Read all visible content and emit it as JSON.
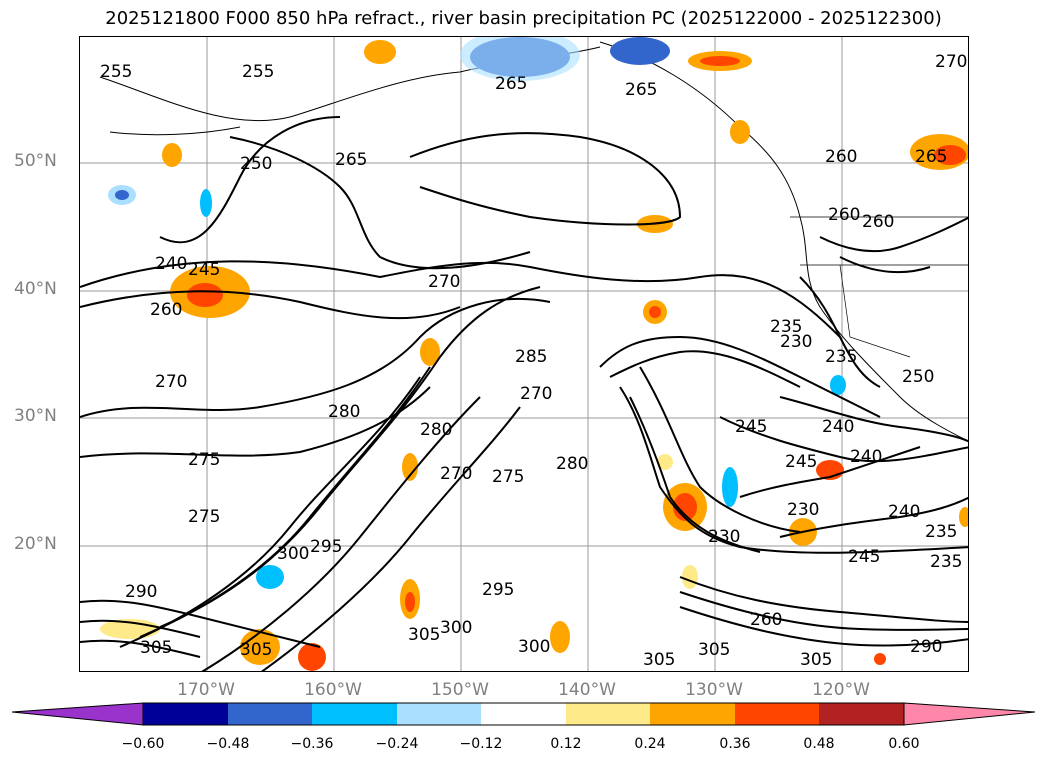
{
  "title": "2025121800 F000 850 hPa refract., river basin precipitation PC (2025122000 - 2025122300)",
  "latitude_labels": [
    "50°N",
    "40°N",
    "30°N",
    "20°N"
  ],
  "longitude_labels": [
    "170°W",
    "160°W",
    "150°W",
    "140°W",
    "130°W",
    "120°W"
  ],
  "colorbar": {
    "tick_labels": [
      "−0.60",
      "−0.48",
      "−0.36",
      "−0.24",
      "−0.12",
      "0.12",
      "0.24",
      "0.36",
      "0.48",
      "0.60"
    ],
    "colors": [
      "#9933cc",
      "#000099",
      "#3366cc",
      "#00bfff",
      "#aadfff",
      "#ffffff",
      "#ffea8a",
      "#ffa500",
      "#ff4500",
      "#b22222",
      "#ff88aa"
    ]
  },
  "contour_labels": [
    "255",
    "265",
    "265",
    "265",
    "270",
    "250",
    "265",
    "255",
    "260",
    "260",
    "260",
    "240",
    "245",
    "260",
    "270",
    "270",
    "280",
    "275",
    "270",
    "285",
    "235",
    "230",
    "280",
    "275",
    "275",
    "270",
    "280",
    "245",
    "240",
    "245",
    "240",
    "230",
    "230",
    "245",
    "240",
    "235",
    "250",
    "235",
    "235",
    "295",
    "300",
    "305",
    "290",
    "305",
    "305",
    "300",
    "295",
    "300",
    "305",
    "305",
    "260",
    "305",
    "290"
  ]
}
